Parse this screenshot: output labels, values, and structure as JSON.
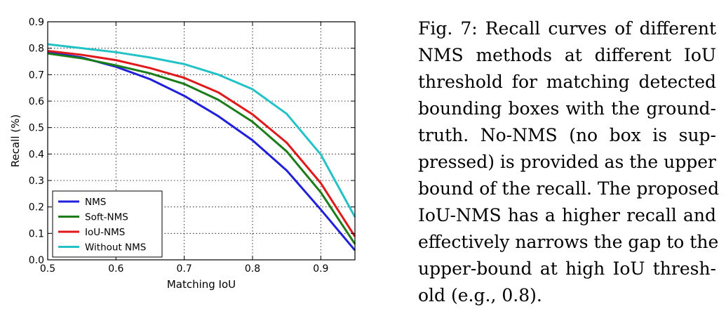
{
  "chart_data": {
    "type": "line",
    "title": "",
    "xlabel": "Matching IoU",
    "ylabel": "Recall (%)",
    "xlim": [
      0.5,
      0.95
    ],
    "ylim": [
      0.0,
      0.9
    ],
    "xticks": [
      "0.5",
      "0.6",
      "0.7",
      "0.8",
      "0.9"
    ],
    "yticks": [
      "0.0",
      "0.1",
      "0.2",
      "0.3",
      "0.4",
      "0.5",
      "0.6",
      "0.7",
      "0.8",
      "0.9"
    ],
    "grid": true,
    "legend_position": "bottom-left",
    "x": [
      0.5,
      0.55,
      0.6,
      0.65,
      0.7,
      0.75,
      0.8,
      0.85,
      0.9,
      0.95
    ],
    "series": [
      {
        "name": "NMS",
        "color": "#1f1fdc",
        "values": [
          0.785,
          0.765,
          0.73,
          0.683,
          0.62,
          0.543,
          0.452,
          0.338,
          0.19,
          0.036
        ]
      },
      {
        "name": "Soft-NMS",
        "color": "#1a7d1a",
        "values": [
          0.78,
          0.762,
          0.735,
          0.705,
          0.665,
          0.605,
          0.522,
          0.41,
          0.255,
          0.06
        ]
      },
      {
        "name": "IoU-NMS",
        "color": "#e01a1a",
        "values": [
          0.79,
          0.775,
          0.755,
          0.725,
          0.688,
          0.633,
          0.55,
          0.443,
          0.29,
          0.088
        ]
      },
      {
        "name": "Without NMS",
        "color": "#22c2c6",
        "values": [
          0.815,
          0.8,
          0.785,
          0.765,
          0.74,
          0.7,
          0.645,
          0.552,
          0.398,
          0.162
        ]
      }
    ]
  },
  "caption": {
    "lines": [
      "Fig. 7: Recall curves of different",
      "NMS methods at different IoU",
      "threshold for matching detected",
      "bounding boxes with the ground-",
      "truth. No-NMS (no box is sup-",
      "pressed) is provided as the upper",
      "bound of the recall. The proposed",
      "IoU-NMS has a higher recall and",
      "effectively narrows the gap to the",
      "upper-bound at high IoU thresh-",
      "old (e.g., 0.8)."
    ]
  }
}
